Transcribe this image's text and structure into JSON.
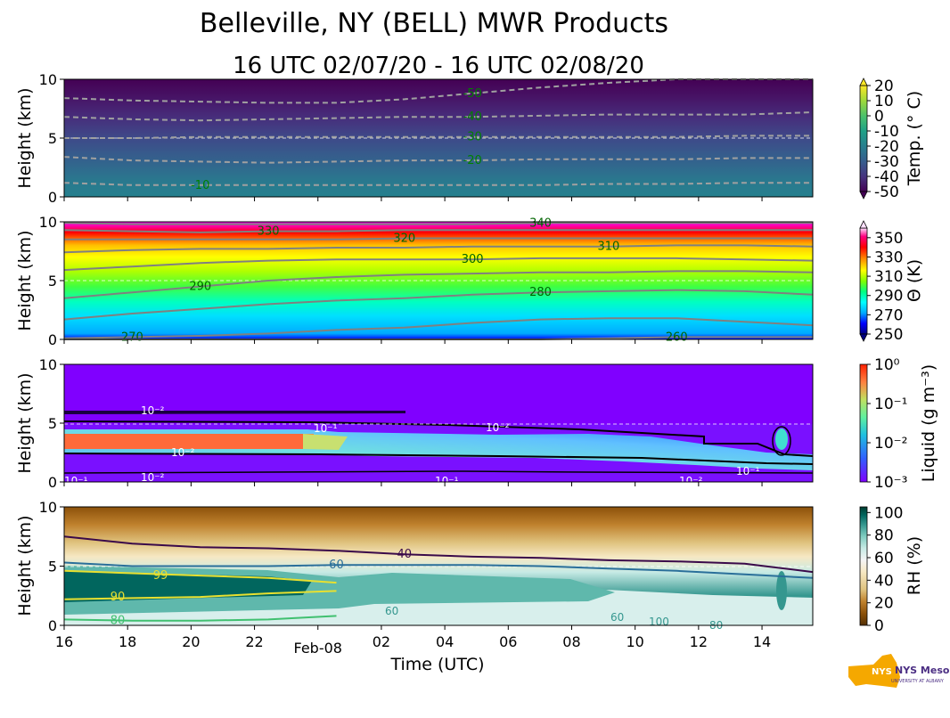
{
  "figure": {
    "title": "Belleville, NY (BELL) MWR Products",
    "subtitle": "16 UTC 02/07/20 - 16 UTC 02/08/20",
    "xlabel": "Time (UTC)",
    "logo_text": "NYS Mesonet",
    "logo_subtext": "UNIVERSITY AT ALBANY"
  },
  "chart_data": [
    {
      "type": "heatmap",
      "name": "temperature",
      "ylabel": "Height (km)",
      "ylim": [
        0,
        10
      ],
      "yticks": [
        "0",
        "5",
        "10"
      ],
      "x_ticks": [
        "16",
        "18",
        "20",
        "22",
        "Feb-08",
        "02",
        "04",
        "06",
        "08",
        "10",
        "12",
        "14"
      ],
      "x_hours": [
        0,
        2,
        4,
        6,
        8,
        10,
        12,
        14,
        16,
        18,
        20,
        22
      ],
      "x_range_hours": [
        0,
        23.6
      ],
      "colorbar": {
        "label": "Temp. (° C)",
        "ticks": [
          "20",
          "10",
          "0",
          "-10",
          "-20",
          "-30",
          "-40",
          "-50"
        ],
        "range": [
          -50,
          20
        ],
        "colors": [
          "#440154",
          "#46337e",
          "#365c8d",
          "#277f8e",
          "#1fa187",
          "#4ac16d",
          "#a0da39",
          "#fde725"
        ]
      },
      "contours": [
        {
          "label": "-50",
          "heights_km": [
            8.4,
            8.2,
            8.1,
            8.0,
            8.0,
            8.3,
            8.8,
            9.3,
            9.7,
            10.0,
            10.0,
            10.0
          ]
        },
        {
          "label": "-40",
          "heights_km": [
            6.8,
            6.6,
            6.5,
            6.6,
            6.7,
            6.8,
            6.8,
            6.9,
            7.0,
            7.0,
            7.0,
            7.2
          ]
        },
        {
          "label": "-30",
          "heights_km": [
            5.0,
            5.0,
            5.1,
            5.1,
            5.1,
            5.1,
            5.1,
            5.1,
            5.1,
            5.1,
            5.2,
            5.2
          ]
        },
        {
          "label": "-20",
          "heights_km": [
            3.4,
            3.1,
            3.0,
            2.9,
            3.0,
            3.1,
            3.1,
            3.2,
            3.2,
            3.2,
            3.3,
            3.3
          ]
        },
        {
          "label": "-10",
          "heights_km": [
            1.2,
            1.0,
            1.0,
            1.0,
            1.0,
            1.0,
            1.0,
            1.0,
            1.1,
            1.1,
            1.2,
            1.2
          ]
        }
      ]
    },
    {
      "type": "heatmap",
      "name": "potential_temperature",
      "ylabel": "Height (km)",
      "ylim": [
        0,
        10
      ],
      "yticks": [
        "0",
        "5",
        "10"
      ],
      "colorbar": {
        "label": "Θ (K)",
        "ticks": [
          "350",
          "330",
          "310",
          "290",
          "270",
          "250"
        ],
        "range": [
          250,
          360
        ],
        "colors": [
          "#000080",
          "#0000ff",
          "#00aaff",
          "#00ffff",
          "#00ff80",
          "#80ff00",
          "#ffff00",
          "#ff8000",
          "#ff0000",
          "#ff00ff"
        ]
      },
      "contours": [
        {
          "label": "340",
          "heights_km": [
            9.9,
            9.8,
            9.8,
            9.8,
            9.8,
            9.8,
            9.8,
            9.9,
            9.9,
            9.9,
            9.9,
            9.9
          ]
        },
        {
          "label": "330",
          "heights_km": [
            9.3,
            9.2,
            9.1,
            9.2,
            9.2,
            9.3,
            9.3,
            9.3,
            9.3,
            9.3,
            9.3,
            9.3
          ]
        },
        {
          "label": "320",
          "heights_km": [
            8.5,
            8.5,
            8.5,
            8.5,
            8.5,
            8.6,
            8.6,
            8.6,
            8.6,
            8.6,
            8.6,
            8.6
          ]
        },
        {
          "label": "310",
          "heights_km": [
            7.4,
            7.6,
            7.7,
            7.7,
            7.8,
            7.8,
            7.9,
            7.9,
            7.9,
            8.0,
            8.0,
            7.9
          ]
        },
        {
          "label": "300",
          "heights_km": [
            5.9,
            6.2,
            6.5,
            6.7,
            6.8,
            6.8,
            6.8,
            6.9,
            6.9,
            6.9,
            6.8,
            6.7
          ]
        },
        {
          "label": "290",
          "heights_km": [
            3.5,
            4.0,
            4.5,
            5.0,
            5.3,
            5.5,
            5.6,
            5.7,
            5.7,
            5.8,
            5.8,
            5.7
          ]
        },
        {
          "label": "280",
          "heights_km": [
            1.7,
            2.2,
            2.6,
            3.0,
            3.3,
            3.5,
            3.8,
            4.0,
            4.1,
            4.2,
            4.1,
            3.8
          ]
        },
        {
          "label": "270",
          "heights_km": [
            0.1,
            0.2,
            0.3,
            0.5,
            0.8,
            1.0,
            1.4,
            1.7,
            1.8,
            1.8,
            1.5,
            1.2
          ]
        },
        {
          "label": "260",
          "heights_km": [
            0.0,
            0.0,
            0.0,
            0.0,
            0.0,
            0.0,
            0.0,
            0.0,
            0.1,
            0.2,
            0.2,
            0.2
          ]
        }
      ]
    },
    {
      "type": "heatmap",
      "name": "liquid_water",
      "ylabel": "Height (km)",
      "ylim": [
        0,
        10
      ],
      "yticks": [
        "0",
        "5",
        "10"
      ],
      "colorbar": {
        "label": "Liquid (g m⁻³)",
        "ticks": [
          "10⁰",
          "10⁻¹",
          "10⁻²",
          "10⁻³"
        ],
        "scale": "log",
        "range": [
          0.001,
          1
        ],
        "colors": [
          "#8000ff",
          "#3060ff",
          "#20c0e0",
          "#60f0a0",
          "#c0e060",
          "#ff8040",
          "#ff2000"
        ]
      },
      "contour_labels": [
        "10⁻²",
        "10⁻¹",
        "10⁻²",
        "10⁻²",
        "10⁻¹",
        "10⁻²",
        "10⁻¹",
        "10⁻¹",
        "10⁻¹",
        "10⁻²"
      ]
    },
    {
      "type": "heatmap",
      "name": "relative_humidity",
      "ylabel": "Height (km)",
      "ylim": [
        0,
        10
      ],
      "yticks": [
        "0",
        "5",
        "10"
      ],
      "colorbar": {
        "label": "RH (%)",
        "ticks": [
          "100",
          "80",
          "60",
          "40",
          "20",
          "0"
        ],
        "range": [
          0,
          105
        ],
        "colors": [
          "#543005",
          "#8c510a",
          "#bf812d",
          "#dfc27d",
          "#f6e8c3",
          "#f5f5f5",
          "#c7eae5",
          "#80cdc1",
          "#35978f",
          "#01665e",
          "#003c30"
        ]
      },
      "contours": [
        {
          "label": "40",
          "heights_km": [
            7.5,
            6.9,
            6.6,
            6.5,
            6.3,
            6.0,
            5.8,
            5.7,
            5.5,
            5.4,
            5.2,
            4.5
          ]
        },
        {
          "label": "60",
          "heights_km": [
            5.3,
            5.0,
            5.0,
            5.0,
            5.1,
            5.1,
            5.1,
            5.0,
            4.8,
            4.6,
            4.3,
            4.0
          ]
        },
        {
          "label": "99",
          "heights_km": [
            4.6,
            4.4,
            4.2,
            4.0,
            3.6,
            0,
            0,
            0,
            0,
            0,
            0,
            0
          ]
        },
        {
          "label": "90",
          "heights_km": [
            2.2,
            2.3,
            2.4,
            2.7,
            2.9,
            0,
            0,
            0,
            0,
            0,
            0,
            0
          ]
        },
        {
          "label": "80",
          "heights_km": [
            0.5,
            0.4,
            0.4,
            0.5,
            0.8,
            0,
            0,
            0,
            0,
            0,
            0,
            0
          ]
        }
      ],
      "extra_labels": [
        "60",
        "60",
        "100",
        "80"
      ]
    }
  ]
}
